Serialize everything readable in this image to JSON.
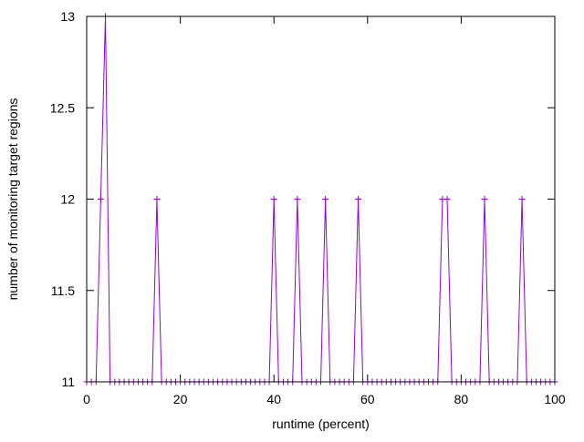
{
  "chart_data": {
    "type": "line",
    "title": "",
    "xlabel": "runtime (percent)",
    "ylabel": "number of monitoring target regions",
    "xlim": [
      0,
      100
    ],
    "ylim": [
      11,
      13
    ],
    "xticks": [
      0,
      20,
      40,
      60,
      80,
      100
    ],
    "yticks": [
      11,
      11.5,
      12,
      12.5,
      13
    ],
    "xtick_labels": [
      "0",
      "20",
      "40",
      "60",
      "80",
      "100"
    ],
    "ytick_labels": [
      "11",
      "11.5",
      "12",
      "12.5",
      "13"
    ],
    "grid": false,
    "legend": "none",
    "marker": "plus",
    "series_color": "#9400d3",
    "series": [
      {
        "x": [
          0,
          1,
          2,
          3,
          4,
          5,
          6,
          7,
          8,
          9,
          10,
          11,
          12,
          13,
          14,
          15,
          16,
          17,
          18,
          19,
          20,
          21,
          22,
          23,
          24,
          25,
          26,
          27,
          28,
          29,
          30,
          31,
          32,
          33,
          34,
          35,
          36,
          37,
          38,
          39,
          40,
          41,
          42,
          43,
          44,
          45,
          46,
          47,
          48,
          49,
          50,
          51,
          52,
          53,
          54,
          55,
          56,
          57,
          58,
          59,
          60,
          61,
          62,
          63,
          64,
          65,
          66,
          67,
          68,
          69,
          70,
          71,
          72,
          73,
          74,
          75,
          76,
          77,
          78,
          79,
          80,
          81,
          82,
          83,
          84,
          85,
          86,
          87,
          88,
          89,
          90,
          91,
          92,
          93,
          94,
          95,
          96,
          97,
          98,
          99,
          100
        ],
        "y": [
          11,
          11,
          11,
          12,
          13,
          11,
          11,
          11,
          11,
          11,
          11,
          11,
          11,
          11,
          11,
          12,
          11,
          11,
          11,
          11,
          11,
          11,
          11,
          11,
          11,
          11,
          11,
          11,
          11,
          11,
          11,
          11,
          11,
          11,
          11,
          11,
          11,
          11,
          11,
          11,
          12,
          11,
          11,
          11,
          11,
          12,
          11,
          11,
          11,
          11,
          11,
          12,
          11,
          11,
          11,
          11,
          11,
          11,
          12,
          11,
          11,
          11,
          11,
          11,
          11,
          11,
          11,
          11,
          11,
          11,
          11,
          11,
          11,
          11,
          11,
          11,
          12,
          12,
          11,
          11,
          11,
          11,
          11,
          11,
          11,
          12,
          11,
          11,
          11,
          11,
          11,
          11,
          11,
          12,
          11,
          11,
          11,
          11,
          11,
          11,
          11
        ]
      }
    ]
  }
}
